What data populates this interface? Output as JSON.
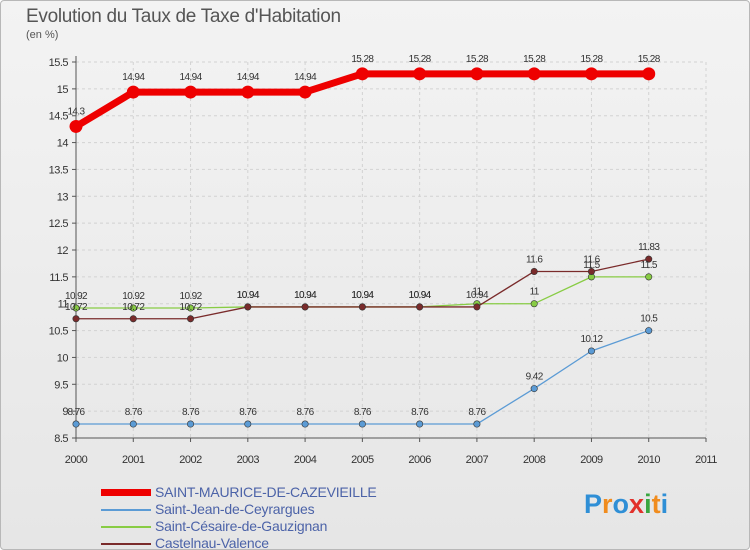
{
  "title": "Evolution du Taux de Taxe d'Habitation",
  "subtitle": "(en %)",
  "logo": {
    "letters": [
      "P",
      "r",
      "o",
      "x",
      "i",
      "t",
      "i"
    ],
    "colors": [
      "#2f8fd6",
      "#f08c1e",
      "#2f8fd6",
      "#e2312b",
      "#3aa640",
      "#f08c1e",
      "#2f8fd6"
    ]
  },
  "chart_data": {
    "type": "line",
    "x": [
      2000,
      2001,
      2002,
      2003,
      2004,
      2005,
      2006,
      2007,
      2008,
      2009,
      2010
    ],
    "x_ticks": [
      "2000",
      "2001",
      "2002",
      "2003",
      "2004",
      "2005",
      "2006",
      "2007",
      "2008",
      "2009",
      "2010",
      "2011"
    ],
    "y_ticks": [
      "8.5",
      "9",
      "9.5",
      "10",
      "10.5",
      "11",
      "11.5",
      "12",
      "12.5",
      "13",
      "13.5",
      "14",
      "14.5",
      "15",
      "15.5"
    ],
    "xlim": [
      2000,
      2011
    ],
    "ylim": [
      8.5,
      15.5
    ],
    "grid": "both",
    "series": [
      {
        "name": "SAINT-MAURICE-DE-CAZEVIEILLE",
        "color": "#ee0000",
        "values": [
          14.3,
          14.94,
          14.94,
          14.94,
          14.94,
          15.28,
          15.28,
          15.28,
          15.28,
          15.28,
          15.28
        ],
        "labels": [
          "14.3",
          "14.94",
          "14.94",
          "14.94",
          "14.94",
          "15.28",
          "15.28",
          "15.28",
          "15.28",
          "15.28",
          "15.28"
        ]
      },
      {
        "name": "Saint-Jean-de-Ceyrargues",
        "color": "#5b9bd5",
        "values": [
          8.76,
          8.76,
          8.76,
          8.76,
          8.76,
          8.76,
          8.76,
          8.76,
          9.42,
          10.12,
          10.5
        ],
        "labels": [
          "8.76",
          "8.76",
          "8.76",
          "8.76",
          "8.76",
          "8.76",
          "8.76",
          "8.76",
          "9.42",
          "10.12",
          "10.5"
        ]
      },
      {
        "name": "Saint-Césaire-de-Gauzignan",
        "color": "#88cc44",
        "values": [
          10.92,
          10.92,
          10.92,
          10.94,
          10.94,
          10.94,
          10.94,
          11,
          11,
          11.5,
          11.5
        ],
        "labels": [
          "10.92",
          "10.92",
          "10.92",
          "10.94",
          "10.94",
          "10.94",
          "10.94",
          "11",
          "11",
          "11.5",
          "11.5"
        ]
      },
      {
        "name": "Castelnau-Valence",
        "color": "#7a2b2b",
        "values": [
          10.72,
          10.72,
          10.72,
          10.94,
          10.94,
          10.94,
          10.94,
          10.94,
          11.6,
          11.6,
          11.83
        ],
        "labels": [
          "10.72",
          "10.72",
          "10.72",
          "10.94",
          "10.94",
          "10.94",
          "10.94",
          "10.94",
          "11.6",
          "11.6",
          "11.83"
        ]
      }
    ]
  }
}
